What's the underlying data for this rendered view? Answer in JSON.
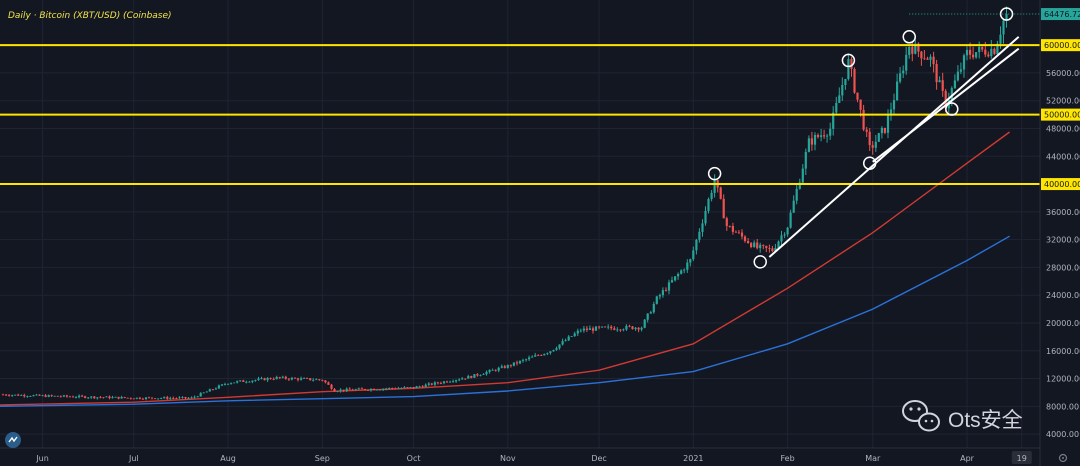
{
  "chart_data": {
    "type": "candlestick",
    "title": "Daily · Bitcoin (XBT/USD) (Coinbase)",
    "y_ticks": [
      4000,
      8000,
      12000,
      16000,
      20000,
      24000,
      28000,
      32000,
      36000,
      40000,
      44000,
      48000,
      52000,
      56000,
      60000
    ],
    "ylim": [
      2000,
      66500
    ],
    "x_ticks": [
      {
        "label": "Jun",
        "date": "2020-06-01"
      },
      {
        "label": "Jul",
        "date": "2020-07-01"
      },
      {
        "label": "Aug",
        "date": "2020-08-01"
      },
      {
        "label": "Sep",
        "date": "2020-09-01"
      },
      {
        "label": "Oct",
        "date": "2020-10-01"
      },
      {
        "label": "Nov",
        "date": "2020-11-01"
      },
      {
        "label": "Dec",
        "date": "2020-12-01"
      },
      {
        "label": "2021",
        "date": "2021-01-01"
      },
      {
        "label": "Feb",
        "date": "2021-02-01"
      },
      {
        "label": "Mar",
        "date": "2021-03-01"
      },
      {
        "label": "Apr",
        "date": "2021-04-01"
      },
      {
        "label": "19",
        "date": "2021-04-19"
      }
    ],
    "xlim": [
      "2020-05-18",
      "2021-04-25"
    ],
    "price_path": [
      {
        "date": "2020-05-18",
        "price": 9700
      },
      {
        "date": "2020-06-01",
        "price": 9500
      },
      {
        "date": "2020-07-01",
        "price": 9200
      },
      {
        "date": "2020-07-20",
        "price": 9200
      },
      {
        "date": "2020-08-01",
        "price": 11400
      },
      {
        "date": "2020-08-17",
        "price": 12100
      },
      {
        "date": "2020-09-01",
        "price": 11800
      },
      {
        "date": "2020-09-05",
        "price": 10300
      },
      {
        "date": "2020-10-01",
        "price": 10700
      },
      {
        "date": "2020-10-20",
        "price": 12300
      },
      {
        "date": "2020-11-01",
        "price": 13800
      },
      {
        "date": "2020-11-15",
        "price": 16000
      },
      {
        "date": "2020-11-25",
        "price": 19000
      },
      {
        "date": "2020-12-01",
        "price": 19200
      },
      {
        "date": "2020-12-15",
        "price": 19400
      },
      {
        "date": "2020-12-20",
        "price": 23500
      },
      {
        "date": "2020-12-31",
        "price": 29000
      },
      {
        "date": "2021-01-08",
        "price": 40600
      },
      {
        "date": "2021-01-12",
        "price": 34000
      },
      {
        "date": "2021-01-22",
        "price": 30800
      },
      {
        "date": "2021-01-27",
        "price": 30500
      },
      {
        "date": "2021-02-01",
        "price": 34000
      },
      {
        "date": "2021-02-08",
        "price": 46000
      },
      {
        "date": "2021-02-15",
        "price": 48000
      },
      {
        "date": "2021-02-21",
        "price": 57500
      },
      {
        "date": "2021-02-28",
        "price": 45000
      },
      {
        "date": "2021-03-05",
        "price": 48000
      },
      {
        "date": "2021-03-13",
        "price": 60000
      },
      {
        "date": "2021-03-20",
        "price": 58000
      },
      {
        "date": "2021-03-25",
        "price": 51500
      },
      {
        "date": "2021-04-01",
        "price": 58800
      },
      {
        "date": "2021-04-10",
        "price": 59500
      },
      {
        "date": "2021-04-13",
        "price": 63500
      },
      {
        "date": "2021-04-14",
        "price": 64476.72
      }
    ],
    "series": [
      {
        "type": "moving_average",
        "color": "#d03a32",
        "points": [
          {
            "date": "2020-05-18",
            "price": 8200
          },
          {
            "date": "2020-07-01",
            "price": 8600
          },
          {
            "date": "2020-08-01",
            "price": 9300
          },
          {
            "date": "2020-09-01",
            "price": 10100
          },
          {
            "date": "2020-10-01",
            "price": 10600
          },
          {
            "date": "2020-11-01",
            "price": 11400
          },
          {
            "date": "2020-12-01",
            "price": 13200
          },
          {
            "date": "2021-01-01",
            "price": 17000
          },
          {
            "date": "2021-02-01",
            "price": 25000
          },
          {
            "date": "2021-03-01",
            "price": 33000
          },
          {
            "date": "2021-04-01",
            "price": 43000
          },
          {
            "date": "2021-04-15",
            "price": 47500
          }
        ]
      },
      {
        "type": "moving_average",
        "color": "#2a72d9",
        "points": [
          {
            "date": "2020-05-18",
            "price": 8000
          },
          {
            "date": "2020-07-01",
            "price": 8300
          },
          {
            "date": "2020-08-01",
            "price": 8800
          },
          {
            "date": "2020-09-01",
            "price": 9100
          },
          {
            "date": "2020-10-01",
            "price": 9400
          },
          {
            "date": "2020-11-01",
            "price": 10200
          },
          {
            "date": "2020-12-01",
            "price": 11400
          },
          {
            "date": "2021-01-01",
            "price": 13000
          },
          {
            "date": "2021-02-01",
            "price": 17000
          },
          {
            "date": "2021-03-01",
            "price": 22000
          },
          {
            "date": "2021-04-01",
            "price": 29000
          },
          {
            "date": "2021-04-15",
            "price": 32500
          }
        ]
      }
    ],
    "horizontal_levels": [
      {
        "price": 60000,
        "label": "60000.00",
        "color": "#ffe600"
      },
      {
        "price": 50000,
        "label": "50000.00",
        "color": "#ffe600"
      },
      {
        "price": 40000,
        "label": "40000.00",
        "color": "#ffe600"
      }
    ],
    "trendlines": [
      {
        "from": {
          "date": "2021-01-26",
          "price": 29500
        },
        "to": {
          "date": "2021-04-18",
          "price": 61200
        },
        "color": "#ffffff"
      },
      {
        "from": {
          "date": "2021-03-01",
          "price": 43200
        },
        "to": {
          "date": "2021-04-18",
          "price": 59500
        },
        "color": "#ffffff"
      }
    ],
    "circled_points": [
      {
        "date": "2021-01-08",
        "price": 41500
      },
      {
        "date": "2021-01-23",
        "price": 28800
      },
      {
        "date": "2021-02-21",
        "price": 57800
      },
      {
        "date": "2021-02-28",
        "price": 43000
      },
      {
        "date": "2021-03-13",
        "price": 61200
      },
      {
        "date": "2021-03-27",
        "price": 50800
      },
      {
        "date": "2021-04-14",
        "price": 64476.72
      }
    ],
    "last_price": {
      "price": 64476.72,
      "label": "64476.72",
      "color": "#26a69a"
    },
    "grid": true
  },
  "watermark": {
    "text": "Ots安全"
  }
}
